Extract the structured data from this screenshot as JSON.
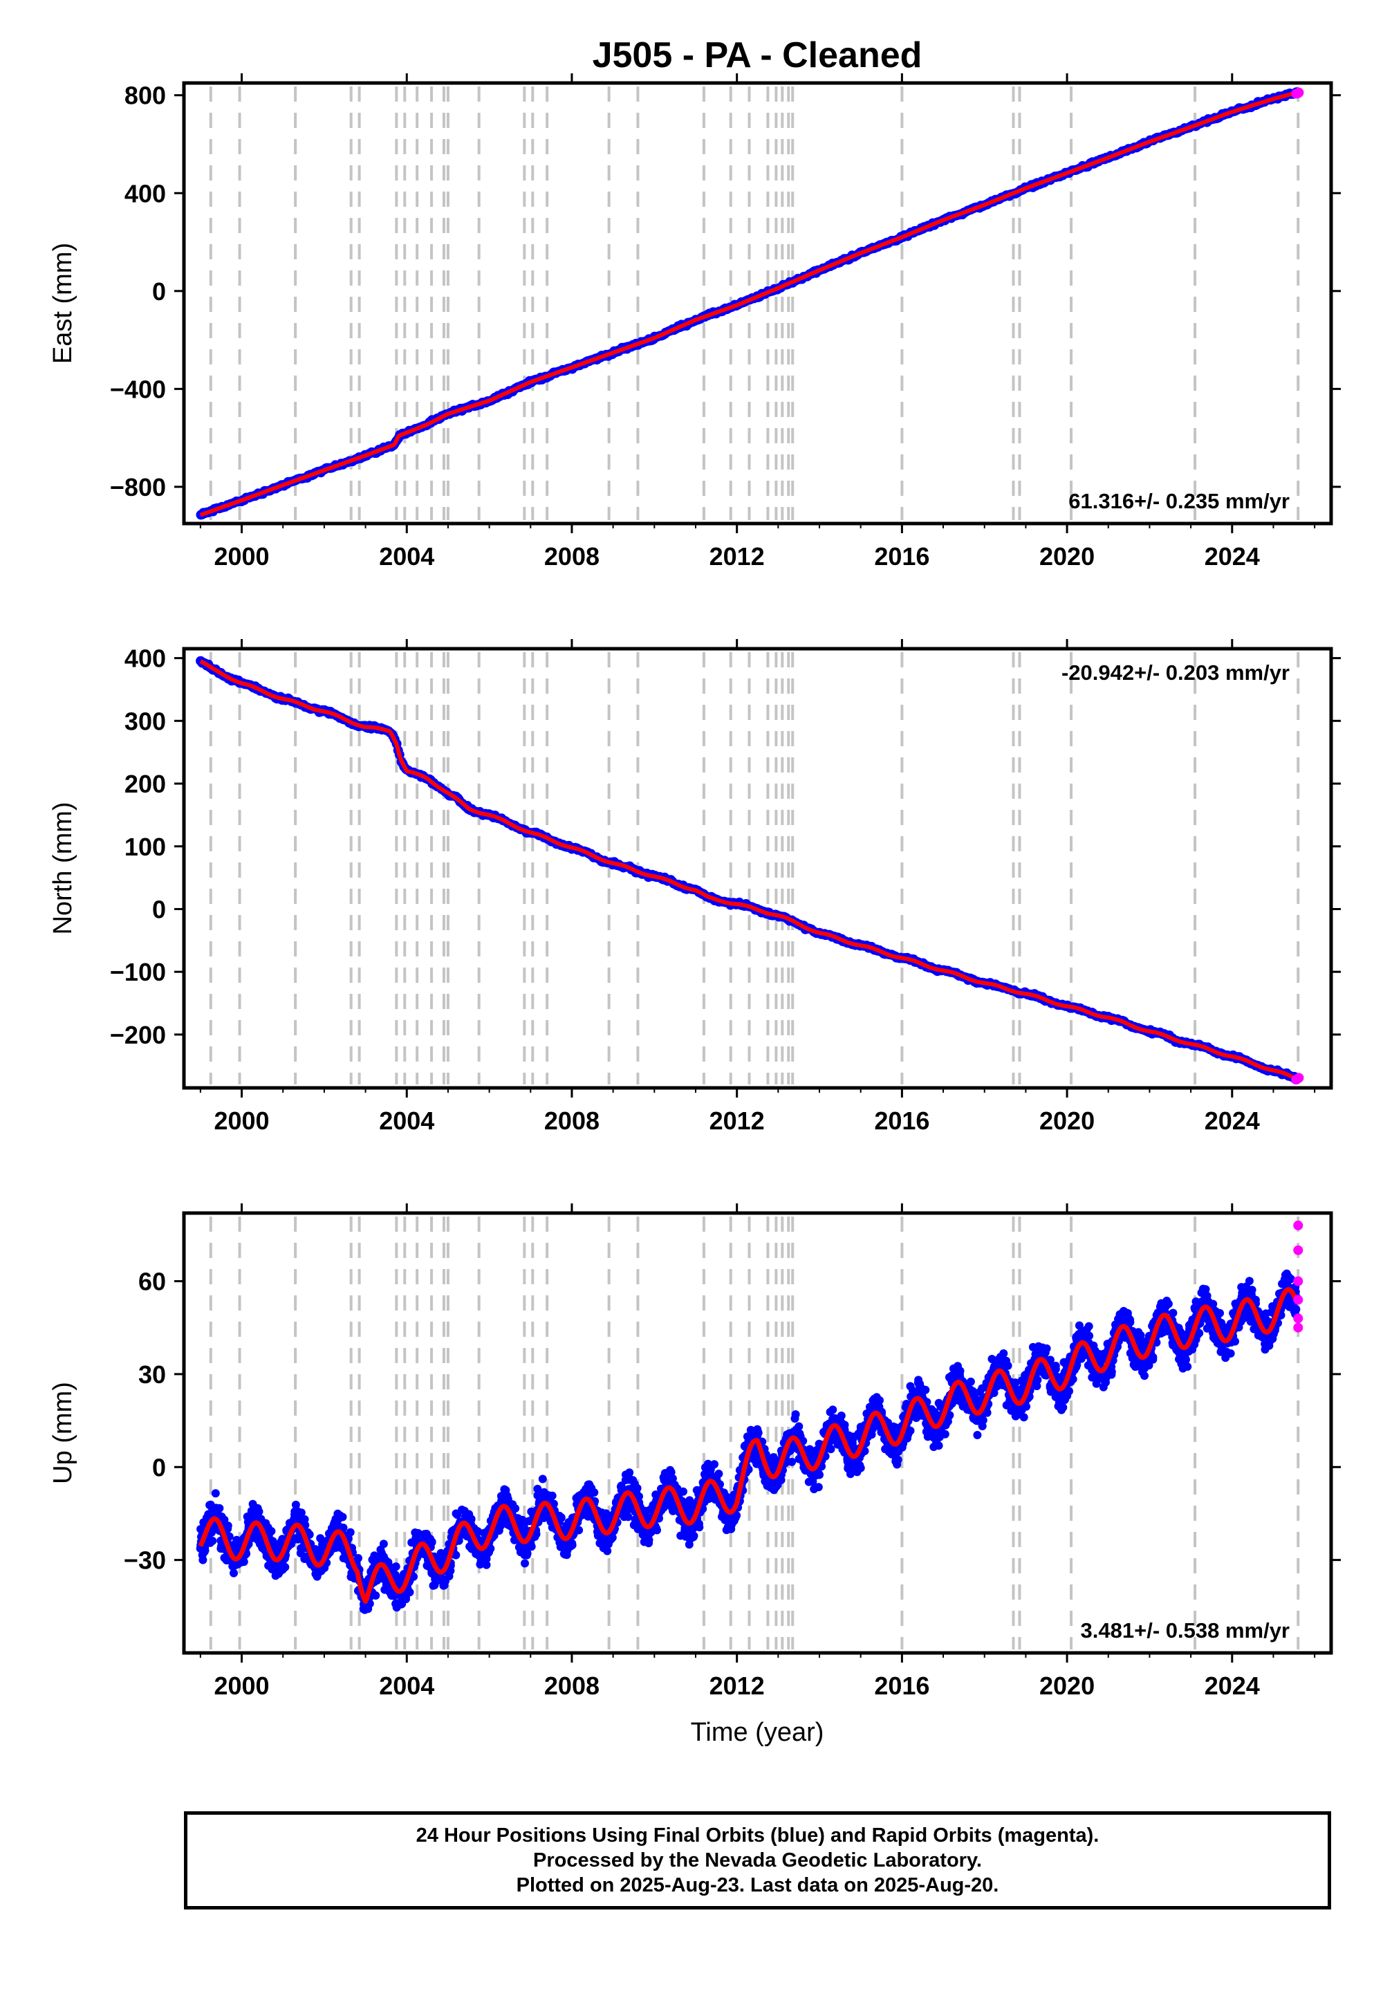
{
  "title": "J505  - PA - Cleaned",
  "colors": {
    "final_orbits": "#0000ff",
    "rapid_orbits": "#ff00ff",
    "model_fit": "#ff0000",
    "event_lines": "#c4c4c4",
    "frame": "#000000"
  },
  "x_axis": {
    "label": "Time (year)",
    "range": [
      1998.6,
      2026.4
    ],
    "ticks": [
      2000,
      2004,
      2008,
      2012,
      2016,
      2020,
      2024
    ]
  },
  "event_lines_years": [
    1999.25,
    1999.95,
    2001.3,
    2002.65,
    2002.85,
    2003.75,
    2003.95,
    2004.25,
    2004.6,
    2004.9,
    2005.0,
    2005.75,
    2006.85,
    2007.05,
    2007.4,
    2008.9,
    2009.6,
    2011.2,
    2011.85,
    2012.3,
    2012.75,
    2012.95,
    2013.1,
    2013.25,
    2013.35,
    2016.0,
    2018.7,
    2018.85,
    2020.1,
    2023.1,
    2025.6
  ],
  "chart_data": [
    {
      "type": "scatter",
      "component": "East",
      "ylabel": "East (mm)",
      "ylim": [
        -950,
        850
      ],
      "yticks": [
        800,
        400,
        0,
        -400,
        -800
      ],
      "rate_label": "61.316+/- 0.235 mm/yr",
      "rate_position": "bottom-right",
      "grid": false,
      "series": [
        {
          "name": "Final Orbits",
          "color": "#0000ff",
          "x": [
            1999.0,
            2000.0,
            2001.0,
            2002.0,
            2003.0,
            2003.7,
            2003.8,
            2004.5,
            2005.0,
            2006.0,
            2007.0,
            2008.0,
            2009.0,
            2010.0,
            2011.0,
            2012.0,
            2013.0,
            2014.0,
            2015.0,
            2016.0,
            2017.0,
            2018.0,
            2019.0,
            2020.0,
            2021.0,
            2022.0,
            2023.0,
            2024.0,
            2025.0,
            2025.55
          ],
          "y": [
            -915,
            -855,
            -793,
            -732,
            -672,
            -628,
            -592,
            -545,
            -502,
            -448,
            -372,
            -312,
            -252,
            -192,
            -118,
            -58,
            12,
            85,
            155,
            220,
            290,
            352,
            420,
            482,
            545,
            610,
            670,
            732,
            785,
            810
          ]
        },
        {
          "name": "Rapid Orbits",
          "color": "#ff00ff",
          "x": [
            2025.55,
            2025.6,
            2025.62
          ],
          "y": [
            806,
            808,
            811
          ]
        }
      ]
    },
    {
      "type": "scatter",
      "component": "North",
      "ylabel": "North (mm)",
      "ylim": [
        -285,
        415
      ],
      "yticks": [
        400,
        300,
        200,
        100,
        0,
        -100,
        -200
      ],
      "rate_label": "-20.942+/- 0.203 mm/yr",
      "rate_position": "top-right",
      "grid": false,
      "series": [
        {
          "name": "Final Orbits",
          "color": "#0000ff",
          "x": [
            1999.0,
            1999.3,
            2000.0,
            2001.0,
            2002.0,
            2003.0,
            2003.6,
            2003.75,
            2003.85,
            2004.0,
            2004.5,
            2005.0,
            2005.5,
            2006.0,
            2007.0,
            2008.0,
            2009.0,
            2010.0,
            2011.0,
            2011.2,
            2011.3,
            2012.0,
            2013.0,
            2014.0,
            2015.0,
            2016.0,
            2017.0,
            2018.0,
            2019.0,
            2020.0,
            2021.0,
            2022.0,
            2023.0,
            2024.0,
            2025.0,
            2025.55
          ],
          "y": [
            395,
            382,
            360,
            335,
            315,
            290,
            284,
            265,
            240,
            220,
            208,
            185,
            160,
            150,
            122,
            98,
            73,
            52,
            30,
            22,
            18,
            8,
            -10,
            -38,
            -58,
            -78,
            -98,
            -118,
            -135,
            -155,
            -173,
            -195,
            -215,
            -235,
            -257,
            -270
          ]
        },
        {
          "name": "Rapid Orbits",
          "color": "#ff00ff",
          "x": [
            2025.55,
            2025.6,
            2025.62
          ],
          "y": [
            -272,
            -270,
            -269
          ]
        }
      ]
    },
    {
      "type": "scatter",
      "component": "Up",
      "ylabel": "Up (mm)",
      "ylim": [
        -60,
        82
      ],
      "yticks": [
        60,
        30,
        0,
        -30
      ],
      "rate_label": "3.481+/- 0.538 mm/yr",
      "rate_position": "bottom-right",
      "grid": false,
      "series": [
        {
          "name": "Final Orbits",
          "color": "#0000ff",
          "x": [
            1999.0,
            2000.0,
            2001.0,
            2002.0,
            2002.8,
            2003.0,
            2004.0,
            2005.0,
            2006.0,
            2007.0,
            2008.0,
            2009.0,
            2010.0,
            2011.0,
            2012.0,
            2012.5,
            2013.0,
            2014.0,
            2015.0,
            2016.0,
            2017.0,
            2018.0,
            2019.0,
            2020.0,
            2021.0,
            2022.0,
            2023.0,
            2024.0,
            2025.0,
            2025.55
          ],
          "y": [
            -22,
            -24,
            -24,
            -26,
            -28,
            -40,
            -33,
            -27,
            -19,
            -18,
            -17,
            -15,
            -13,
            -12,
            -8,
            5,
            2,
            6,
            10,
            14,
            20,
            24,
            27,
            32,
            38,
            42,
            45,
            47,
            50,
            52
          ]
        },
        {
          "name": "Rapid Orbits",
          "color": "#ff00ff",
          "x": [
            2025.6,
            2025.6,
            2025.6,
            2025.6,
            2025.6,
            2025.6
          ],
          "y": [
            78,
            70,
            60,
            54,
            48,
            45
          ]
        }
      ]
    }
  ],
  "footer": {
    "line1": "24 Hour Positions Using Final Orbits (blue) and Rapid Orbits (magenta).",
    "line2": "Processed by the Nevada Geodetic Laboratory.",
    "line3": "Plotted on 2025-Aug-23. Last data on 2025-Aug-20."
  }
}
